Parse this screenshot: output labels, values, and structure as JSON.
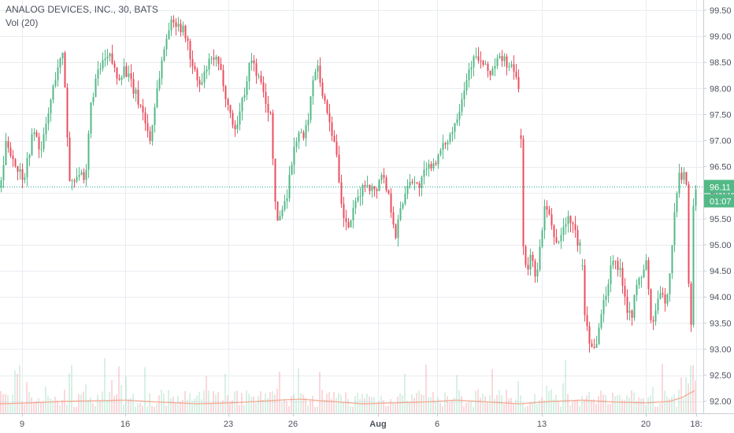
{
  "chart_data": {
    "type": "candlestick",
    "symbol_title": "ANALOG DEVICES, INC., 30, BATS",
    "volume_label": "Vol (20)",
    "x_ticks": [
      "9",
      "16",
      "23",
      "26",
      "Aug",
      "6",
      "13",
      "20",
      "18:"
    ],
    "y_ticks": [
      "99.50",
      "99.00",
      "98.50",
      "98.00",
      "97.50",
      "97.00",
      "96.50",
      "96.00",
      "95.50",
      "95.00",
      "94.50",
      "94.00",
      "93.50",
      "93.00",
      "92.50",
      "92.00"
    ],
    "y_range": [
      91.92,
      99.62
    ],
    "last_price": "96.11",
    "countdown": "01:07",
    "colors": {
      "up": "#53b987",
      "down": "#eb4d5c",
      "grid": "#e9ecf1",
      "axis_text": "#4c525e",
      "volume_ma": "#f4a68b",
      "price_line": "#26a69a"
    },
    "price_path": [
      [
        0,
        96.1
      ],
      [
        8,
        97.0
      ],
      [
        20,
        96.5
      ],
      [
        30,
        96.3
      ],
      [
        42,
        97.2
      ],
      [
        52,
        96.8
      ],
      [
        62,
        97.6
      ],
      [
        72,
        98.4
      ],
      [
        80,
        98.65
      ],
      [
        88,
        96.2
      ],
      [
        100,
        96.4
      ],
      [
        108,
        96.1
      ],
      [
        114,
        97.6
      ],
      [
        120,
        98.1
      ],
      [
        130,
        98.5
      ],
      [
        140,
        98.6
      ],
      [
        148,
        98.2
      ],
      [
        158,
        98.4
      ],
      [
        168,
        98.0
      ],
      [
        180,
        97.6
      ],
      [
        190,
        97.0
      ],
      [
        198,
        97.9
      ],
      [
        206,
        98.6
      ],
      [
        214,
        99.2
      ],
      [
        224,
        99.3
      ],
      [
        236,
        99.0
      ],
      [
        244,
        98.4
      ],
      [
        254,
        98.0
      ],
      [
        262,
        98.4
      ],
      [
        272,
        98.6
      ],
      [
        282,
        98.2
      ],
      [
        290,
        97.6
      ],
      [
        298,
        97.2
      ],
      [
        308,
        97.8
      ],
      [
        318,
        98.6
      ],
      [
        328,
        98.2
      ],
      [
        336,
        97.8
      ],
      [
        344,
        97.4
      ],
      [
        350,
        95.4
      ],
      [
        356,
        95.6
      ],
      [
        364,
        96.0
      ],
      [
        370,
        96.6
      ],
      [
        378,
        97.2
      ],
      [
        386,
        97.0
      ],
      [
        394,
        97.8
      ],
      [
        402,
        98.6
      ],
      [
        410,
        97.8
      ],
      [
        418,
        97.4
      ],
      [
        426,
        96.8
      ],
      [
        432,
        95.8
      ],
      [
        440,
        95.3
      ],
      [
        448,
        95.6
      ],
      [
        456,
        96.0
      ],
      [
        466,
        96.2
      ],
      [
        476,
        96.0
      ],
      [
        484,
        96.4
      ],
      [
        494,
        95.9
      ],
      [
        502,
        95.2
      ],
      [
        510,
        95.8
      ],
      [
        520,
        96.3
      ],
      [
        530,
        96.1
      ],
      [
        540,
        96.4
      ],
      [
        550,
        96.6
      ],
      [
        558,
        96.7
      ],
      [
        566,
        97.0
      ],
      [
        574,
        97.2
      ],
      [
        582,
        97.6
      ],
      [
        590,
        98.1
      ],
      [
        598,
        98.5
      ],
      [
        606,
        98.6
      ],
      [
        614,
        98.4
      ],
      [
        622,
        98.3
      ],
      [
        630,
        98.5
      ],
      [
        638,
        98.6
      ],
      [
        646,
        98.4
      ],
      [
        654,
        98.3
      ],
      [
        660,
        97.8
      ],
      [
        664,
        95.0
      ],
      [
        668,
        94.4
      ],
      [
        674,
        94.8
      ],
      [
        680,
        94.4
      ],
      [
        686,
        95.0
      ],
      [
        692,
        95.8
      ],
      [
        700,
        95.3
      ],
      [
        708,
        95.0
      ],
      [
        716,
        95.4
      ],
      [
        724,
        95.5
      ],
      [
        732,
        95.1
      ],
      [
        738,
        94.9
      ],
      [
        742,
        93.7
      ],
      [
        748,
        93.2
      ],
      [
        754,
        93.0
      ],
      [
        760,
        93.4
      ],
      [
        766,
        93.9
      ],
      [
        772,
        94.3
      ],
      [
        778,
        94.8
      ],
      [
        784,
        94.6
      ],
      [
        790,
        94.3
      ],
      [
        796,
        93.8
      ],
      [
        802,
        93.7
      ],
      [
        808,
        94.2
      ],
      [
        814,
        94.4
      ],
      [
        820,
        94.7
      ],
      [
        826,
        93.5
      ],
      [
        832,
        93.7
      ],
      [
        838,
        94.1
      ],
      [
        844,
        93.8
      ],
      [
        850,
        94.5
      ],
      [
        856,
        95.6
      ],
      [
        862,
        96.3
      ],
      [
        868,
        96.4
      ],
      [
        872,
        96.0
      ],
      [
        876,
        92.7
      ],
      [
        880,
        95.8
      ],
      [
        884,
        96.2
      ]
    ],
    "gaps": [
      660,
      738
    ],
    "volume_ma_path": [
      [
        0,
        0.3
      ],
      [
        40,
        0.33
      ],
      [
        80,
        0.38
      ],
      [
        120,
        0.4
      ],
      [
        160,
        0.42
      ],
      [
        200,
        0.36
      ],
      [
        250,
        0.3
      ],
      [
        300,
        0.34
      ],
      [
        340,
        0.4
      ],
      [
        380,
        0.45
      ],
      [
        420,
        0.38
      ],
      [
        460,
        0.3
      ],
      [
        500,
        0.33
      ],
      [
        540,
        0.36
      ],
      [
        580,
        0.42
      ],
      [
        620,
        0.36
      ],
      [
        660,
        0.3
      ],
      [
        700,
        0.38
      ],
      [
        740,
        0.42
      ],
      [
        780,
        0.36
      ],
      [
        820,
        0.33
      ],
      [
        850,
        0.38
      ],
      [
        866,
        0.5
      ],
      [
        884,
        0.75
      ]
    ]
  }
}
